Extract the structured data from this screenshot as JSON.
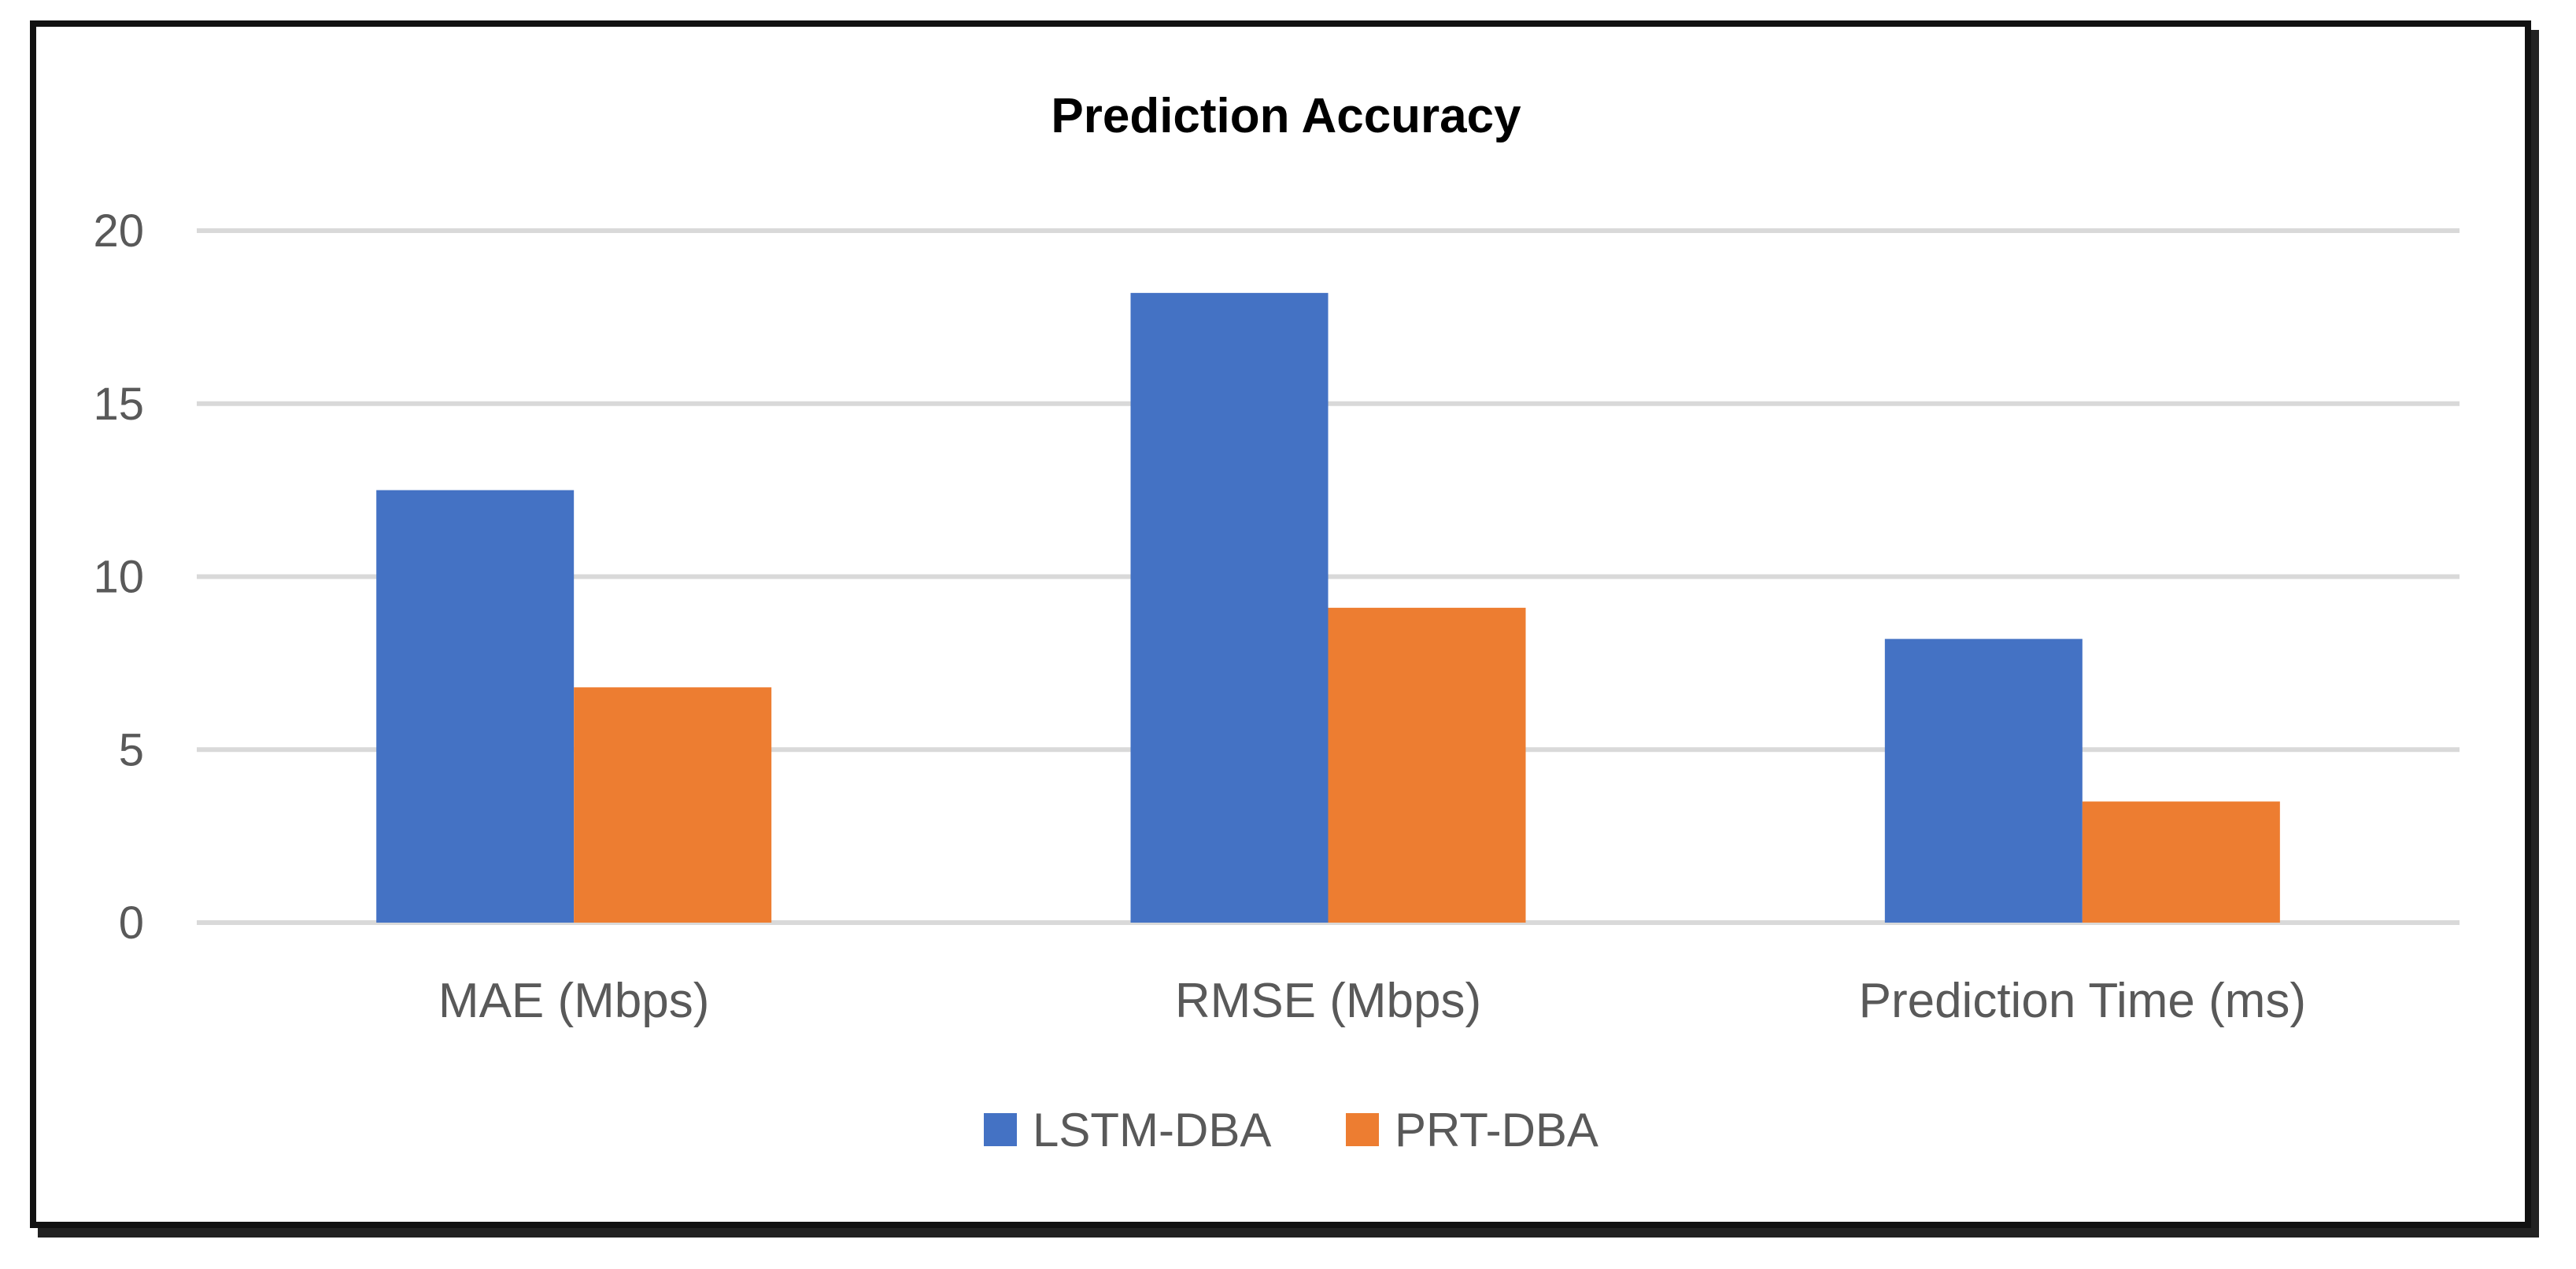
{
  "chart_data": {
    "type": "bar",
    "title": "Prediction Accuracy",
    "categories": [
      "MAE (Mbps)",
      "RMSE (Mbps)",
      "Prediction Time (ms)"
    ],
    "series": [
      {
        "name": "LSTM-DBA",
        "color": "#4472C4",
        "values": [
          12.5,
          18.2,
          8.2
        ]
      },
      {
        "name": "PRT-DBA",
        "color": "#ED7D31",
        "values": [
          6.8,
          9.1,
          3.5
        ]
      }
    ],
    "ylim": [
      0,
      20
    ],
    "yticks": [
      0,
      5,
      10,
      15,
      20
    ],
    "xlabel": "",
    "ylabel": "",
    "grid": true,
    "legend_position": "bottom"
  }
}
